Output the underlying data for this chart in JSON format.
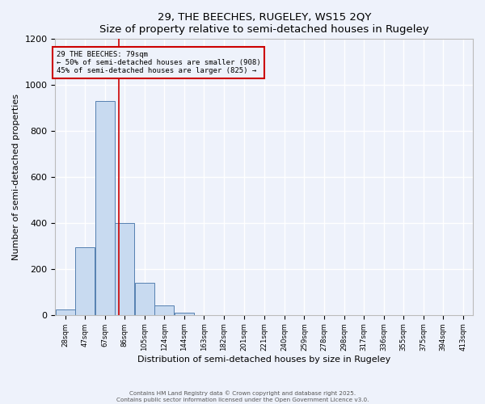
{
  "title": "29, THE BEECHES, RUGELEY, WS15 2QY",
  "subtitle": "Size of property relative to semi-detached houses in Rugeley",
  "xlabel": "Distribution of semi-detached houses by size in Rugeley",
  "ylabel": "Number of semi-detached properties",
  "bin_labels": [
    "28sqm",
    "47sqm",
    "67sqm",
    "86sqm",
    "105sqm",
    "124sqm",
    "144sqm",
    "163sqm",
    "182sqm",
    "201sqm",
    "221sqm",
    "240sqm",
    "259sqm",
    "278sqm",
    "298sqm",
    "317sqm",
    "336sqm",
    "355sqm",
    "375sqm",
    "394sqm",
    "413sqm"
  ],
  "bin_edges": [
    18.5,
    37.5,
    56.5,
    75.5,
    94.5,
    113.5,
    132.5,
    151.5,
    170.5,
    189.5,
    208.5,
    228.5,
    247.5,
    266.5,
    285.5,
    304.5,
    323.5,
    342.5,
    361.5,
    380.5,
    399.5,
    418.5
  ],
  "bar_heights": [
    25,
    295,
    930,
    400,
    140,
    40,
    10,
    0,
    0,
    0,
    0,
    0,
    0,
    0,
    0,
    0,
    0,
    0,
    0,
    0,
    0
  ],
  "bar_color": "#c8daf0",
  "bar_edge_color": "#5580b0",
  "property_line_x": 79,
  "property_line_color": "#cc0000",
  "annotation_title": "29 THE BEECHES: 79sqm",
  "annotation_line1": "← 50% of semi-detached houses are smaller (908)",
  "annotation_line2": "45% of semi-detached houses are larger (825) →",
  "annotation_box_color": "#cc0000",
  "ylim": [
    0,
    1200
  ],
  "yticks": [
    0,
    200,
    400,
    600,
    800,
    1000,
    1200
  ],
  "footer_line1": "Contains HM Land Registry data © Crown copyright and database right 2025.",
  "footer_line2": "Contains public sector information licensed under the Open Government Licence v3.0.",
  "background_color": "#eef2fb",
  "plot_bg_color": "#eef2fb"
}
